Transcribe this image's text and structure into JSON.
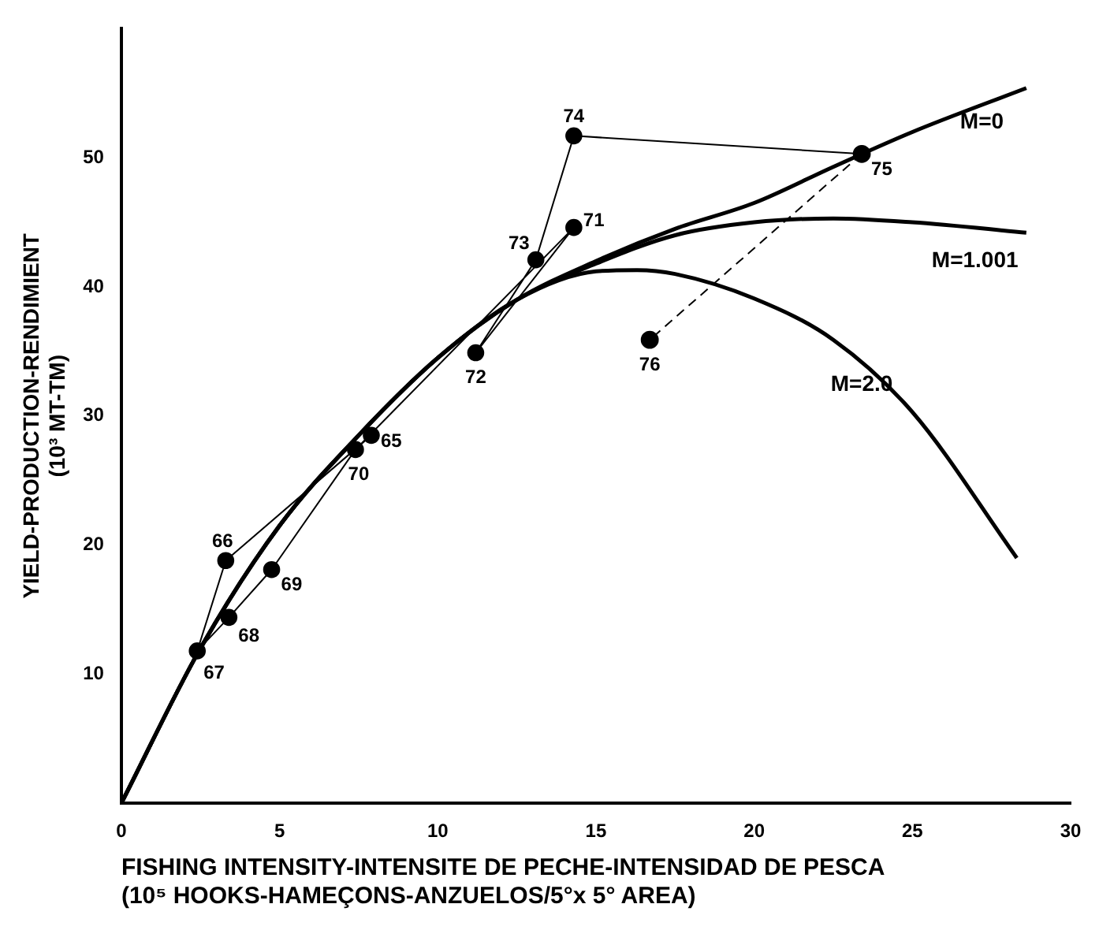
{
  "chart_data": {
    "type": "line",
    "xlabel": "FISHING INTENSITY-INTENSITE DE PECHE-INTENSIDAD DE PESCA\n(10⁵ HOOKS-HAMEÇONS-ANZUELOS/5°x 5° AREA)",
    "ylabel": "YIELD-PRODUCTION-RENDIMIENT\n(10³ MT-TM)",
    "xlim": [
      0,
      30
    ],
    "xticks": [
      0,
      5,
      10,
      15,
      20,
      25,
      30
    ],
    "ylim": [
      0,
      60
    ],
    "yticks": [
      10,
      20,
      30,
      40,
      50
    ],
    "grid": false,
    "legend": false,
    "series": [
      {
        "name": "M=0",
        "color": "#000000",
        "marker": "none",
        "line_style": "solid",
        "x": [
          0,
          2.5,
          5,
          7.5,
          10,
          12.5,
          15,
          17.5,
          20,
          22.5,
          25,
          28.6
        ],
        "values": [
          0,
          12,
          21.5,
          28.5,
          34.5,
          39,
          42,
          44.5,
          46.5,
          49.3,
          52,
          55.4
        ]
      },
      {
        "name": "M=1.001",
        "color": "#000000",
        "marker": "none",
        "line_style": "solid",
        "x": [
          0,
          2.5,
          5,
          7.5,
          10,
          12.5,
          15,
          17.5,
          20,
          22.5,
          25,
          28.6
        ],
        "values": [
          0,
          12,
          21.5,
          28.5,
          34.5,
          39,
          41.8,
          44,
          45,
          45.3,
          45,
          44.2
        ]
      },
      {
        "name": "M=2.0",
        "color": "#000000",
        "marker": "none",
        "line_style": "solid",
        "x": [
          0,
          2.5,
          5,
          7.5,
          10,
          12.5,
          15,
          16.3,
          17.5,
          20,
          22.5,
          25,
          28.3
        ],
        "values": [
          0,
          12,
          21.5,
          28.5,
          34.5,
          39,
          41.2,
          41.3,
          41,
          39.1,
          35.9,
          30.3,
          19
        ]
      },
      {
        "type": "line",
        "color": "#000000",
        "marker": "circle",
        "line_style": "solid",
        "x": [
          7.9,
          3.3,
          2.4,
          3.4,
          4.75,
          7.4,
          14.3,
          11.2,
          13.1,
          14.3,
          23.4
        ],
        "values": [
          28.5,
          18.8,
          11.8,
          14.4,
          18.1,
          27.4,
          44.6,
          34.9,
          42.1,
          51.7,
          50.3
        ]
      },
      {
        "type": "line",
        "color": "#000000",
        "marker": "circle",
        "line_style": "dashed",
        "x": [
          23.4,
          16.7
        ],
        "values": [
          50.3,
          35.9
        ]
      }
    ],
    "annotations": [
      {
        "text": "65",
        "x": 7.9,
        "y": 28.5
      },
      {
        "text": "66",
        "x": 3.3,
        "y": 18.8
      },
      {
        "text": "67",
        "x": 2.4,
        "y": 11.8
      },
      {
        "text": "68",
        "x": 3.4,
        "y": 14.4
      },
      {
        "text": "69",
        "x": 4.75,
        "y": 18.1
      },
      {
        "text": "70",
        "x": 7.4,
        "y": 27.4
      },
      {
        "text": "71",
        "x": 14.3,
        "y": 44.6
      },
      {
        "text": "72",
        "x": 11.2,
        "y": 34.9
      },
      {
        "text": "73",
        "x": 13.1,
        "y": 42.1
      },
      {
        "text": "74",
        "x": 14.3,
        "y": 51.7
      },
      {
        "text": "75",
        "x": 23.4,
        "y": 50.3
      },
      {
        "text": "76",
        "x": 16.7,
        "y": 35.9
      }
    ]
  }
}
